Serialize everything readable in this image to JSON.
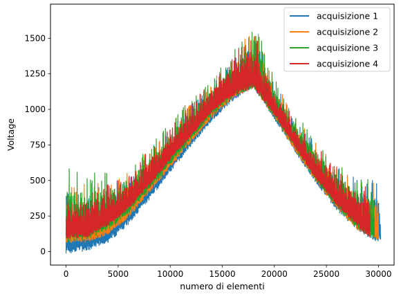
{
  "chart_data": {
    "type": "line",
    "xlabel": "numero di elementi",
    "ylabel": "Voltage",
    "xlim": [
      -1500,
      31500
    ],
    "ylim": [
      -95,
      1740
    ],
    "xticks": [
      0,
      5000,
      10000,
      15000,
      20000,
      25000,
      30000
    ],
    "yticks": [
      0,
      250,
      500,
      750,
      1000,
      1250,
      1500
    ],
    "grid": false,
    "legend_position": "top-right",
    "series": [
      {
        "name": "acquisizione 1",
        "color": "#1f77b4",
        "x_end": 30200,
        "lower": [
          [
            0,
            -15
          ],
          [
            2000,
            5
          ],
          [
            4000,
            60
          ],
          [
            6000,
            190
          ],
          [
            8000,
            360
          ],
          [
            10000,
            560
          ],
          [
            12000,
            740
          ],
          [
            14000,
            920
          ],
          [
            16000,
            1060
          ],
          [
            18000,
            1150
          ],
          [
            20000,
            930
          ],
          [
            22000,
            700
          ],
          [
            24000,
            480
          ],
          [
            26000,
            290
          ],
          [
            28000,
            150
          ],
          [
            30000,
            60
          ]
        ],
        "upper": [
          [
            0,
            430
          ],
          [
            2000,
            450
          ],
          [
            4000,
            470
          ],
          [
            6000,
            530
          ],
          [
            8000,
            700
          ],
          [
            10000,
            880
          ],
          [
            12000,
            1030
          ],
          [
            14000,
            1190
          ],
          [
            16000,
            1350
          ],
          [
            17500,
            1540
          ],
          [
            18500,
            1500
          ],
          [
            20000,
            1180
          ],
          [
            22000,
            950
          ],
          [
            24000,
            760
          ],
          [
            26000,
            620
          ],
          [
            28000,
            520
          ],
          [
            30000,
            500
          ]
        ]
      },
      {
        "name": "acquisizione 2",
        "color": "#ff7f0e",
        "x_end": 30000,
        "lower": [
          [
            0,
            60
          ],
          [
            2000,
            65
          ],
          [
            4000,
            120
          ],
          [
            6000,
            240
          ],
          [
            8000,
            410
          ],
          [
            10000,
            590
          ],
          [
            12000,
            770
          ],
          [
            14000,
            940
          ],
          [
            16000,
            1070
          ],
          [
            18000,
            1150
          ],
          [
            20000,
            940
          ],
          [
            22000,
            710
          ],
          [
            24000,
            490
          ],
          [
            26000,
            300
          ],
          [
            28000,
            150
          ],
          [
            30000,
            75
          ]
        ],
        "upper": [
          [
            0,
            470
          ],
          [
            2000,
            480
          ],
          [
            4000,
            500
          ],
          [
            6000,
            560
          ],
          [
            8000,
            740
          ],
          [
            10000,
            900
          ],
          [
            12000,
            1050
          ],
          [
            14000,
            1210
          ],
          [
            16000,
            1380
          ],
          [
            17500,
            1600
          ],
          [
            18500,
            1560
          ],
          [
            20000,
            1200
          ],
          [
            22000,
            960
          ],
          [
            24000,
            770
          ],
          [
            26000,
            620
          ],
          [
            28000,
            520
          ],
          [
            30000,
            480
          ]
        ]
      },
      {
        "name": "acquisizione 3",
        "color": "#2ca02c",
        "x_end": 29600,
        "lower": [
          [
            0,
            70
          ],
          [
            2000,
            80
          ],
          [
            4000,
            150
          ],
          [
            6000,
            270
          ],
          [
            8000,
            430
          ],
          [
            10000,
            610
          ],
          [
            12000,
            790
          ],
          [
            14000,
            960
          ],
          [
            16000,
            1080
          ],
          [
            18000,
            1150
          ],
          [
            20000,
            950
          ],
          [
            22000,
            720
          ],
          [
            24000,
            500
          ],
          [
            26000,
            310
          ],
          [
            28000,
            160
          ],
          [
            29600,
            85
          ]
        ],
        "upper": [
          [
            0,
            600
          ],
          [
            2000,
            560
          ],
          [
            4000,
            560
          ],
          [
            6000,
            600
          ],
          [
            8000,
            760
          ],
          [
            10000,
            920
          ],
          [
            12000,
            1070
          ],
          [
            14000,
            1230
          ],
          [
            16000,
            1400
          ],
          [
            17500,
            1580
          ],
          [
            18500,
            1550
          ],
          [
            20000,
            1220
          ],
          [
            22000,
            980
          ],
          [
            24000,
            790
          ],
          [
            26000,
            640
          ],
          [
            28000,
            540
          ],
          [
            29600,
            600
          ]
        ]
      },
      {
        "name": "acquisizione 4",
        "color": "#d62728",
        "x_end": 29200,
        "lower": [
          [
            0,
            90
          ],
          [
            2000,
            100
          ],
          [
            4000,
            180
          ],
          [
            6000,
            300
          ],
          [
            8000,
            460
          ],
          [
            10000,
            640
          ],
          [
            12000,
            810
          ],
          [
            14000,
            980
          ],
          [
            16000,
            1090
          ],
          [
            18000,
            1150
          ],
          [
            20000,
            960
          ],
          [
            22000,
            730
          ],
          [
            24000,
            510
          ],
          [
            26000,
            320
          ],
          [
            28000,
            170
          ],
          [
            29200,
            95
          ]
        ],
        "upper": [
          [
            0,
            450
          ],
          [
            2000,
            460
          ],
          [
            4000,
            480
          ],
          [
            6000,
            540
          ],
          [
            8000,
            720
          ],
          [
            10000,
            880
          ],
          [
            12000,
            1040
          ],
          [
            14000,
            1200
          ],
          [
            16000,
            1380
          ],
          [
            17500,
            1520
          ],
          [
            18500,
            1480
          ],
          [
            20000,
            1150
          ],
          [
            22000,
            920
          ],
          [
            24000,
            740
          ],
          [
            26000,
            600
          ],
          [
            28000,
            500
          ],
          [
            29200,
            470
          ]
        ]
      }
    ]
  }
}
